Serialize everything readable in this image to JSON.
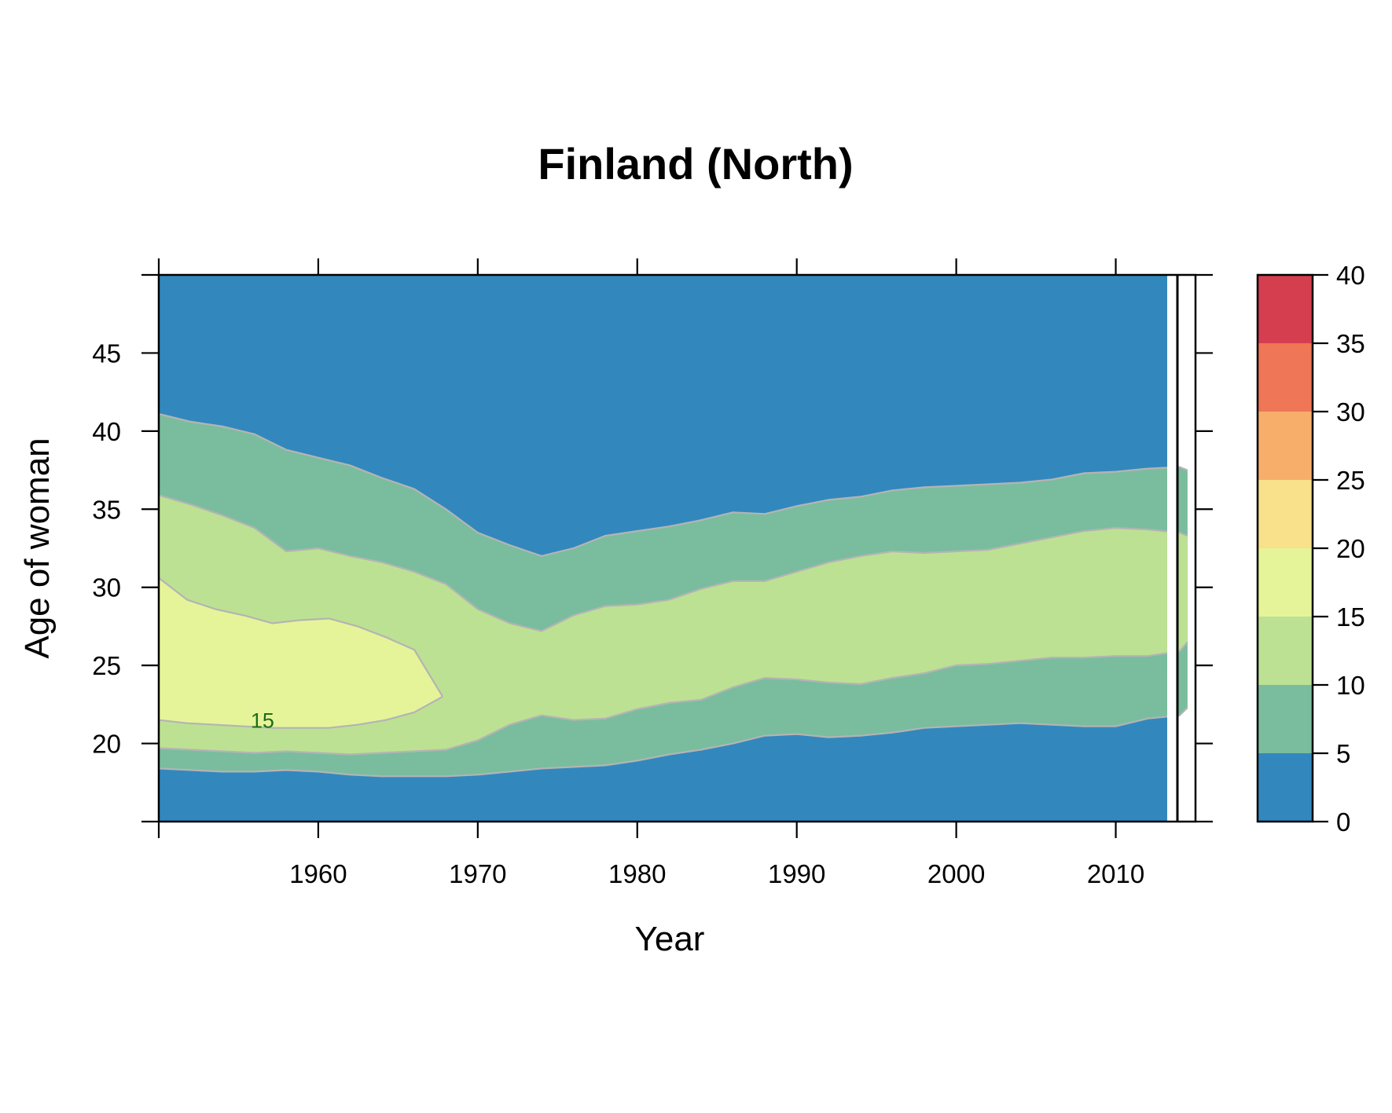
{
  "chart_data": {
    "type": "heatmap",
    "title": "Finland (North)",
    "xlabel": "Year",
    "ylabel": "Age of woman",
    "xlim": [
      1950,
      2015
    ],
    "ylim": [
      15,
      50
    ],
    "x_ticks": [
      1960,
      1970,
      1980,
      1990,
      2000,
      2010
    ],
    "y_ticks": [
      20,
      25,
      30,
      35,
      40,
      45
    ],
    "colorbar": {
      "breaks": [
        0,
        5,
        10,
        15,
        20,
        25,
        30,
        35,
        40
      ],
      "tick_labels": [
        "0",
        "5",
        "10",
        "15",
        "20",
        "25",
        "30",
        "35",
        "40"
      ],
      "colors": [
        "#3288bd",
        "#79bd9e",
        "#bce193",
        "#e6f499",
        "#f9e08b",
        "#f7ae6a",
        "#ef7656",
        "#d53e4f"
      ]
    },
    "grid": false,
    "contour_line_color": "#b4b4b4",
    "contour_labels": [
      {
        "text": "15",
        "x": 1956.5,
        "y": 21.5
      }
    ],
    "bands": [
      {
        "level": "5-10",
        "upper_y": [
          41.1,
          40.6,
          40.3,
          39.8,
          38.8,
          38.3,
          37.8,
          37.0,
          36.3,
          35.0,
          33.5,
          32.7,
          32.0,
          32.5,
          33.3,
          33.6,
          33.9,
          34.3,
          34.8,
          34.7,
          35.2,
          35.6,
          35.8,
          36.2,
          36.4,
          36.5,
          36.6,
          36.7,
          36.9,
          37.3,
          37.4,
          37.6,
          37.7,
          37.5
        ],
        "lower_y": [
          18.4,
          18.3,
          18.2,
          18.2,
          18.3,
          18.2,
          18.0,
          17.9,
          17.9,
          17.9,
          18.0,
          18.2,
          18.4,
          18.5,
          18.6,
          18.9,
          19.3,
          19.6,
          20.0,
          20.5,
          20.6,
          20.4,
          20.5,
          20.7,
          21.0,
          21.1,
          21.2,
          21.3,
          21.2,
          21.1,
          21.1,
          21.6,
          21.8,
          22.3
        ]
      },
      {
        "level": "10-15",
        "upper_y": [
          35.9,
          35.3,
          34.6,
          33.8,
          32.3,
          32.5,
          32.0,
          31.6,
          31.0,
          30.2,
          28.6,
          27.7,
          27.2,
          28.2,
          28.8,
          28.9,
          29.2,
          29.9,
          30.4,
          30.4,
          31.0,
          31.6,
          32.0,
          32.3,
          32.2,
          32.3,
          32.4,
          32.8,
          33.2,
          33.6,
          33.8,
          33.7,
          33.5,
          33.3
        ],
        "lower_y": [
          19.7,
          19.6,
          19.5,
          19.4,
          19.5,
          19.4,
          19.3,
          19.4,
          19.5,
          19.6,
          20.2,
          21.2,
          21.8,
          21.5,
          21.6,
          22.2,
          22.6,
          22.8,
          23.6,
          24.2,
          24.1,
          23.9,
          23.8,
          24.2,
          24.5,
          25.0,
          25.1,
          25.3,
          25.5,
          25.5,
          25.6,
          25.6,
          25.9,
          26.5
        ]
      },
      {
        "level": "15-20",
        "upper_y": [
          30.6,
          29.2,
          28.6,
          28.2,
          27.7,
          27.9,
          28.0,
          27.5,
          26.8,
          26.0,
          23.0
        ],
        "lower_y": [
          21.5,
          21.3,
          21.2,
          21.1,
          21.0,
          21.0,
          21.0,
          21.2,
          21.5,
          22.0,
          23.0
        ]
      }
    ]
  }
}
